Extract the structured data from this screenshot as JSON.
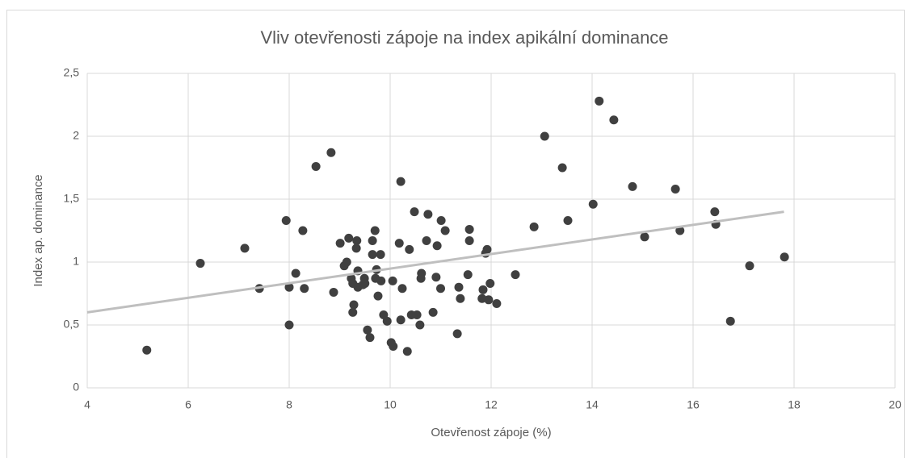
{
  "chart_data": {
    "type": "scatter",
    "title": "Vliv otevřenosti zápoje na index apikální dominance",
    "x_label": "Otevřenost zápoje (%)",
    "y_label": "Index ap. dominance",
    "x": [
      5.18,
      6.24,
      7.12,
      7.41,
      7.94,
      8.0,
      8.0,
      8.13,
      8.27,
      8.3,
      8.53,
      8.83,
      8.88,
      9.01,
      9.09,
      9.14,
      9.18,
      9.23,
      9.26,
      9.28,
      9.26,
      9.33,
      9.34,
      9.36,
      9.36,
      9.46,
      9.49,
      9.5,
      9.55,
      9.6,
      9.65,
      9.65,
      9.7,
      9.71,
      9.73,
      9.76,
      9.81,
      9.82,
      9.87,
      9.94,
      10.02,
      10.06,
      10.05,
      10.18,
      10.21,
      10.21,
      10.24,
      10.34,
      10.38,
      10.42,
      10.48,
      10.53,
      10.59,
      10.61,
      10.62,
      10.72,
      10.75,
      10.85,
      10.91,
      10.93,
      11.0,
      11.01,
      11.09,
      11.33,
      11.36,
      11.39,
      11.54,
      11.57,
      11.57,
      11.82,
      11.84,
      11.89,
      11.92,
      11.95,
      11.98,
      12.11,
      12.48,
      12.85,
      13.06,
      13.41,
      13.52,
      14.02,
      14.14,
      14.43,
      14.8,
      15.04,
      15.65,
      15.74,
      16.43,
      16.45,
      16.74,
      17.12,
      17.81
    ],
    "values": [
      0.3,
      0.99,
      1.11,
      0.79,
      1.33,
      0.8,
      0.5,
      0.91,
      1.25,
      0.79,
      1.76,
      1.87,
      0.76,
      1.15,
      0.97,
      1.0,
      1.19,
      0.87,
      0.83,
      0.66,
      0.6,
      1.11,
      1.17,
      0.93,
      0.8,
      0.82,
      0.87,
      0.83,
      0.46,
      0.4,
      1.06,
      1.17,
      1.25,
      0.87,
      0.94,
      0.73,
      1.06,
      0.85,
      0.58,
      0.53,
      0.36,
      0.33,
      0.85,
      1.15,
      1.64,
      0.54,
      0.79,
      0.29,
      1.1,
      0.58,
      1.4,
      0.58,
      0.5,
      0.87,
      0.91,
      1.17,
      1.38,
      0.6,
      0.88,
      1.13,
      0.79,
      1.33,
      1.25,
      0.43,
      0.8,
      0.71,
      0.9,
      1.26,
      1.17,
      0.71,
      0.78,
      1.07,
      1.1,
      0.7,
      0.83,
      0.67,
      0.9,
      1.28,
      2.0,
      1.75,
      1.33,
      1.46,
      2.28,
      2.13,
      1.6,
      1.2,
      1.58,
      1.25,
      1.4,
      1.3,
      0.53,
      0.97,
      1.04
    ],
    "color": "#404040",
    "trendline": {
      "x": [
        4,
        17.8
      ],
      "values": [
        0.6,
        1.4
      ],
      "color": "#bfbfbf"
    },
    "xlim": [
      4,
      20
    ],
    "xticks": [
      4,
      6,
      8,
      10,
      12,
      14,
      16,
      18,
      20
    ],
    "ylim": [
      0,
      2.5
    ],
    "yticks": [
      0,
      {
        "value": 0.5,
        "label": "0,5"
      },
      1,
      {
        "value": 1.5,
        "label": "1,5"
      },
      2,
      {
        "value": 2.5,
        "label": "2,5"
      }
    ],
    "grid": true
  }
}
